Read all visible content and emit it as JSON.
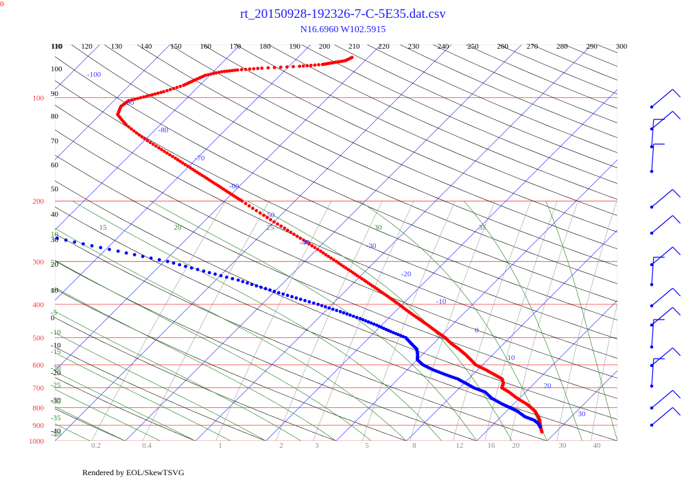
{
  "page": {
    "corner_label": "0",
    "title": "rt_20150928-192326-7-C-5E35.dat.csv",
    "subtitle": "N16.6960 W102.5915",
    "footer": "Rendered by EOL/SkewTSVG"
  },
  "colors": {
    "title": "#1a1aff",
    "isobar": "#ff3333",
    "isotherm": "#3a3aff",
    "dry_adiabat": "#000000",
    "moist_adiabat": "#2e8b2e",
    "mixing_ratio": "#9a9a9a",
    "temperature": "#ff0000",
    "dewpoint": "#0000ff",
    "wind": "#0000ff"
  },
  "chart_data": {
    "type": "skew-t",
    "y_axis": {
      "quantity": "pressure",
      "scale": "log",
      "range": [
        1000,
        70
      ],
      "labels": [
        "100",
        "200",
        "300",
        "400",
        "500",
        "600",
        "700",
        "800",
        "900",
        "1000"
      ]
    },
    "x_axis": {
      "quantity": "temperature",
      "range": [
        -40,
        40
      ]
    },
    "isotherm_labels": [
      "-100",
      "-90",
      "-80",
      "-70",
      "-60",
      "-50",
      "-40",
      "-30",
      "-20",
      "-10",
      "0",
      "10",
      "20",
      "30"
    ],
    "dry_adiabat_labels": [
      "110",
      "120",
      "130",
      "140",
      "150",
      "160",
      "170",
      "180",
      "190",
      "200",
      "210",
      "220",
      "230",
      "240",
      "250",
      "260",
      "270",
      "280",
      "290",
      "300"
    ],
    "moist_adiabat_labels": [
      "15",
      "20",
      "25",
      "30",
      "35"
    ],
    "moist_adiabat_left_labels": [
      "10",
      "5",
      "0",
      "-5",
      "-10",
      "-15",
      "-20",
      "-25",
      "-30",
      "-35",
      "-40"
    ],
    "black_left_labels": [
      "110",
      "100",
      "90",
      "80",
      "70",
      "60",
      "50",
      "40",
      "30",
      "20",
      "10",
      "0",
      "-10",
      "-20",
      "-30",
      "-40"
    ],
    "mixing_ratio_labels": [
      "0.2",
      "0.4",
      "1",
      "2",
      "3",
      "5",
      "8",
      "12",
      "16",
      "20",
      "30",
      "40"
    ],
    "temperature_profile": [
      {
        "p": 942,
        "t": 28.0
      },
      {
        "p": 925,
        "t": 27.5
      },
      {
        "p": 900,
        "t": 26.8
      },
      {
        "p": 870,
        "t": 26.0
      },
      {
        "p": 850,
        "t": 25.3
      },
      {
        "p": 820,
        "t": 24.1
      },
      {
        "p": 800,
        "t": 23.0
      },
      {
        "p": 780,
        "t": 21.8
      },
      {
        "p": 750,
        "t": 19.6
      },
      {
        "p": 720,
        "t": 17.6
      },
      {
        "p": 700,
        "t": 16.0
      },
      {
        "p": 680,
        "t": 15.6
      },
      {
        "p": 660,
        "t": 14.8
      },
      {
        "p": 640,
        "t": 13.0
      },
      {
        "p": 620,
        "t": 11.1
      },
      {
        "p": 600,
        "t": 9.0
      },
      {
        "p": 580,
        "t": 7.6
      },
      {
        "p": 560,
        "t": 6.1
      },
      {
        "p": 540,
        "t": 4.4
      },
      {
        "p": 520,
        "t": 2.5
      },
      {
        "p": 500,
        "t": 0.8
      },
      {
        "p": 480,
        "t": -1.3
      },
      {
        "p": 460,
        "t": -3.4
      },
      {
        "p": 440,
        "t": -5.7
      },
      {
        "p": 420,
        "t": -8.1
      },
      {
        "p": 400,
        "t": -10.5
      },
      {
        "p": 380,
        "t": -13.1
      },
      {
        "p": 360,
        "t": -15.9
      },
      {
        "p": 340,
        "t": -18.9
      },
      {
        "p": 320,
        "t": -22.1
      },
      {
        "p": 300,
        "t": -25.5
      },
      {
        "p": 280,
        "t": -29.2
      },
      {
        "p": 260,
        "t": -33.2
      },
      {
        "p": 240,
        "t": -37.6
      },
      {
        "p": 220,
        "t": -42.4
      },
      {
        "p": 200,
        "t": -47.5
      },
      {
        "p": 190,
        "t": -50.3
      },
      {
        "p": 180,
        "t": -53.2
      },
      {
        "p": 170,
        "t": -56.3
      },
      {
        "p": 160,
        "t": -59.6
      },
      {
        "p": 150,
        "t": -63.1
      },
      {
        "p": 140,
        "t": -66.9
      },
      {
        "p": 130,
        "t": -70.9
      },
      {
        "p": 120,
        "t": -74.8
      },
      {
        "p": 112,
        "t": -77.5
      },
      {
        "p": 106,
        "t": -78.2
      },
      {
        "p": 102,
        "t": -77.9
      },
      {
        "p": 99,
        "t": -76.0
      },
      {
        "p": 96,
        "t": -74.2
      },
      {
        "p": 92,
        "t": -72.3
      },
      {
        "p": 89,
        "t": -71.5
      },
      {
        "p": 86,
        "t": -70.6
      },
      {
        "p": 84,
        "t": -68.8
      },
      {
        "p": 83,
        "t": -66.8
      },
      {
        "p": 82,
        "t": -63.6
      },
      {
        "p": 81,
        "t": -58.5
      },
      {
        "p": 80,
        "t": -55.5
      },
      {
        "p": 79,
        "t": -54.2
      },
      {
        "p": 78,
        "t": -52.8
      },
      {
        "p": 76,
        "t": -52.2
      }
    ],
    "dewpoint_profile": [
      {
        "p": 910,
        "t": 27.0
      },
      {
        "p": 890,
        "t": 26.3
      },
      {
        "p": 870,
        "t": 25.2
      },
      {
        "p": 850,
        "t": 23.4
      },
      {
        "p": 820,
        "t": 21.6
      },
      {
        "p": 800,
        "t": 20.0
      },
      {
        "p": 780,
        "t": 18.3
      },
      {
        "p": 750,
        "t": 16.0
      },
      {
        "p": 720,
        "t": 14.2
      },
      {
        "p": 700,
        "t": 12.0
      },
      {
        "p": 680,
        "t": 10.3
      },
      {
        "p": 660,
        "t": 8.5
      },
      {
        "p": 640,
        "t": 6.0
      },
      {
        "p": 620,
        "t": 3.6
      },
      {
        "p": 600,
        "t": 1.5
      },
      {
        "p": 580,
        "t": 0.0
      },
      {
        "p": 560,
        "t": -0.7
      },
      {
        "p": 540,
        "t": -1.6
      },
      {
        "p": 520,
        "t": -3.2
      },
      {
        "p": 500,
        "t": -4.8
      },
      {
        "p": 480,
        "t": -7.8
      },
      {
        "p": 460,
        "t": -10.7
      },
      {
        "p": 440,
        "t": -14.0
      },
      {
        "p": 420,
        "t": -17.8
      },
      {
        "p": 400,
        "t": -22.0
      },
      {
        "p": 380,
        "t": -26.8
      },
      {
        "p": 360,
        "t": -31.7
      },
      {
        "p": 340,
        "t": -36.8
      },
      {
        "p": 320,
        "t": -43.0
      },
      {
        "p": 300,
        "t": -49.5
      },
      {
        "p": 280,
        "t": -58.0
      },
      {
        "p": 260,
        "t": -67.0
      },
      {
        "p": 240,
        "t": -76.0
      },
      {
        "p": 220,
        "t": -86.0
      },
      {
        "p": 200,
        "t": -96.0
      },
      {
        "p": 185,
        "t": -104.0
      }
    ]
  }
}
